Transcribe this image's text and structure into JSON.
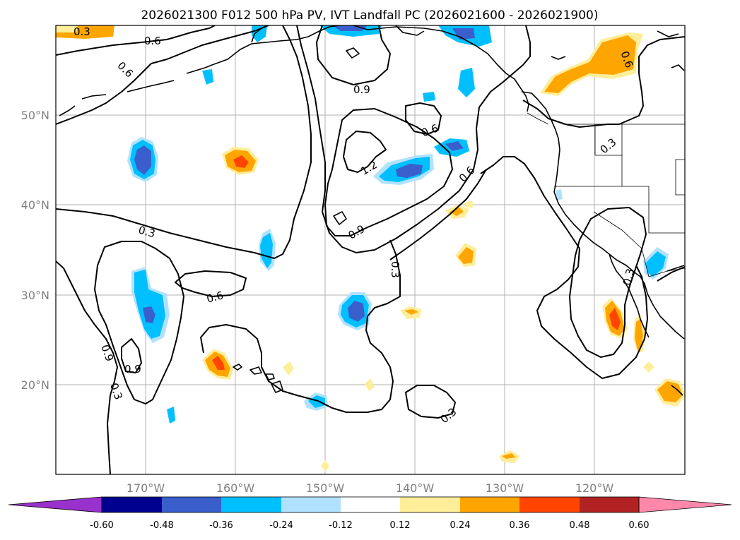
{
  "title": "2026021300 F012 500 hPa PV, IVT Landfall PC (2026021600 - 2026021900)",
  "map": {
    "lon_range_deg_west": [
      180,
      110
    ],
    "lat_range_deg_north": [
      10,
      60
    ],
    "lon_labels": [
      "170°W",
      "160°W",
      "150°W",
      "140°W",
      "130°W",
      "120°W"
    ],
    "lat_labels": [
      "50°N",
      "40°N",
      "30°N",
      "20°N"
    ],
    "contour_labels": [
      "0.3",
      "0.6",
      "0.9",
      "1.2",
      "0.9",
      "0.6",
      "0.3",
      "0.6",
      "0.3",
      "0.6",
      "0.9",
      "0.3",
      "0.3",
      "0.3",
      "0.6",
      "0.6",
      "0.3",
      "0.9"
    ]
  },
  "colorbar": {
    "ticks": [
      "-0.60",
      "-0.48",
      "-0.36",
      "-0.24",
      "-0.12",
      "0.12",
      "0.24",
      "0.36",
      "0.48",
      "0.60"
    ],
    "colors": {
      "under": "#9932cc",
      "c1": "#000090",
      "c2": "#3a5fcd",
      "c3": "#00bfff",
      "c4": "#b0e2ff",
      "c5": "#ffffff",
      "c6": "#ffee99",
      "c7": "#ffa500",
      "c8": "#ff4500",
      "c9": "#b22222",
      "over": "#ff88aa"
    }
  }
}
